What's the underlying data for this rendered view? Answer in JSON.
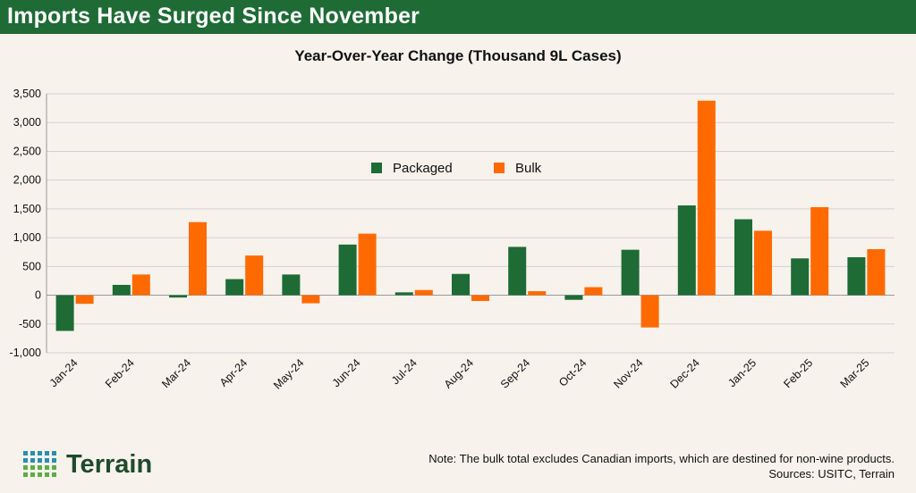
{
  "banner": {
    "title": "Imports Have Surged Since November"
  },
  "chart_data": {
    "type": "bar",
    "title": "Year-Over-Year Change (Thousand 9L Cases)",
    "xlabel": "",
    "ylabel": "",
    "ylim": [
      -1000,
      3500
    ],
    "yticks": [
      -1000,
      -500,
      0,
      500,
      1000,
      1500,
      2000,
      2500,
      3000,
      3500
    ],
    "ytick_labels": [
      "-1,000",
      "-500",
      "0",
      "500",
      "1,000",
      "1,500",
      "2,000",
      "2,500",
      "3,000",
      "3,500"
    ],
    "grid": true,
    "legend_position": "top-center",
    "categories": [
      "Jan-24",
      "Feb-24",
      "Mar-24",
      "Apr-24",
      "May-24",
      "Jun-24",
      "Jul-24",
      "Aug-24",
      "Sep-24",
      "Oct-24",
      "Nov-24",
      "Dec-24",
      "Jan-25",
      "Feb-25",
      "Mar-25"
    ],
    "series": [
      {
        "name": "Packaged",
        "color": "#1e6b35",
        "values": [
          -620,
          180,
          -40,
          280,
          360,
          880,
          50,
          370,
          840,
          -80,
          790,
          1560,
          1320,
          640,
          660
        ]
      },
      {
        "name": "Bulk",
        "color": "#ff6a00",
        "values": [
          -150,
          360,
          1270,
          690,
          -140,
          1070,
          90,
          -100,
          70,
          140,
          -560,
          3380,
          1120,
          1530,
          800
        ]
      }
    ]
  },
  "logo": {
    "text": "Terrain"
  },
  "footer": {
    "note": "Note: The bulk total excludes Canadian imports, which are destined for non-wine products.",
    "sources": "Sources: USITC, Terrain"
  },
  "colors": {
    "banner": "#1e6b35",
    "background": "#f7f2ec",
    "logo_dots": "#2a8fb0"
  }
}
